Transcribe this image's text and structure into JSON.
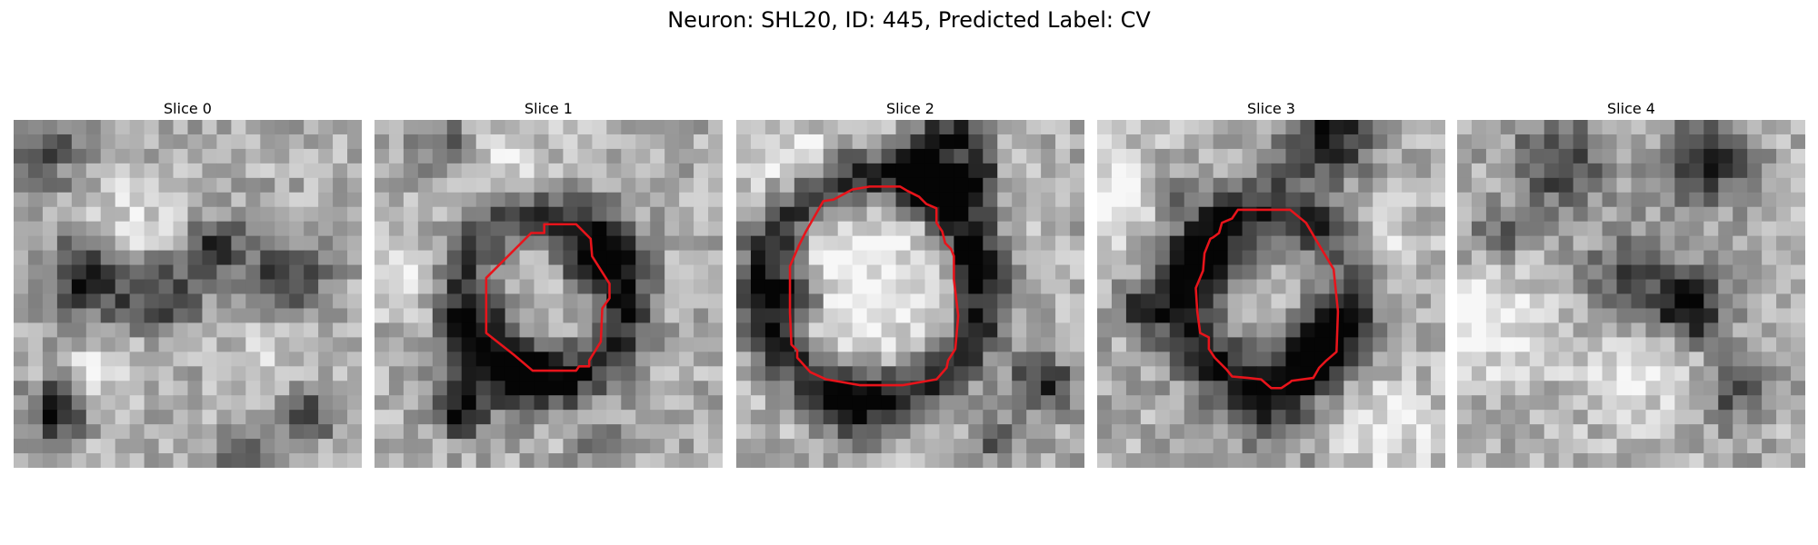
{
  "figure": {
    "title": "Neuron: SHL20, ID: 445, Predicted Label: CV"
  },
  "slices": [
    {
      "title": "Slice 0",
      "has_contour": false
    },
    {
      "title": "Slice 1",
      "has_contour": true
    },
    {
      "title": "Slice 2",
      "has_contour": true
    },
    {
      "title": "Slice 3",
      "has_contour": true
    },
    {
      "title": "Slice 4",
      "has_contour": false
    }
  ],
  "style": {
    "contour_color": "#e8141b",
    "colormap": "grayscale"
  }
}
